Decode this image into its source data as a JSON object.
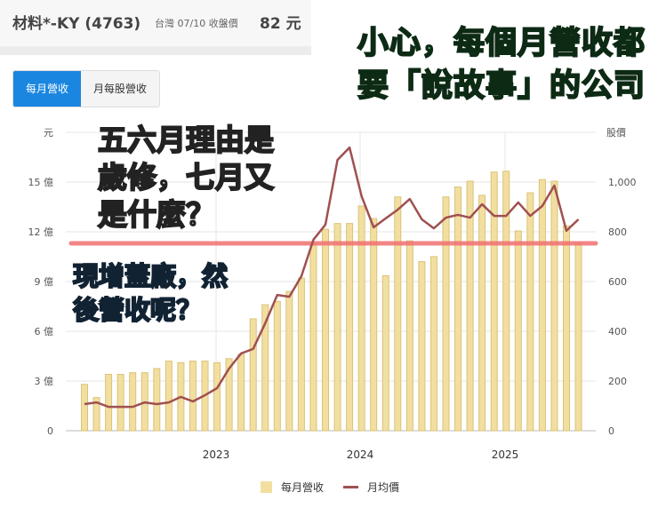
{
  "header": {
    "stock_name": "材料*-KY (4763)",
    "market_date_label": "台灣 07/10 收盤價",
    "close_price": "82 元"
  },
  "tabs": [
    {
      "label": "每月營收",
      "active": true
    },
    {
      "label": "月每股營收",
      "active": false
    }
  ],
  "overlay_title": {
    "line1": "小心，每個月營收都",
    "line2": "要「說故事」的公司",
    "color": "#3bc07a"
  },
  "annotations": {
    "note1": [
      "五六月理由是",
      "歲修，七月又",
      "是什麼？"
    ],
    "note2": [
      "現增蓋廠，然",
      "後營收呢？"
    ],
    "threshold_line_color": "#f07070"
  },
  "legend": {
    "revenue": "每月營收",
    "price": "月均價"
  },
  "chart_data": {
    "type": "bar",
    "title": "",
    "left_axis_unit_label": "元",
    "right_axis_label": "股價",
    "left_ticks": [
      "0",
      "3 億",
      "6 億",
      "9 億",
      "12 億",
      "15 億"
    ],
    "right_ticks": [
      "0",
      "200",
      "400",
      "600",
      "800",
      "1,000"
    ],
    "x_labels": [
      "2023",
      "2024",
      "2025"
    ],
    "ylim_left": [
      0,
      18
    ],
    "ylim_right": [
      0,
      1200
    ],
    "grid": true,
    "legend_position": "bottom",
    "threshold_value_left": 11.3,
    "series": [
      {
        "name": "每月營收",
        "type": "bar",
        "axis": "left",
        "unit": "億",
        "color": "#f2dfa0",
        "values": [
          2.8,
          2.0,
          3.4,
          3.4,
          3.5,
          3.5,
          3.75,
          4.2,
          4.1,
          4.2,
          4.2,
          4.1,
          4.35,
          4.6,
          6.75,
          7.6,
          7.8,
          8.4,
          9.2,
          11.25,
          12.15,
          12.5,
          12.5,
          13.55,
          12.8,
          9.35,
          14.1,
          11.45,
          10.2,
          10.5,
          14.1,
          14.7,
          15.05,
          14.2,
          15.6,
          15.65,
          12.05,
          14.35,
          15.15,
          15.05,
          12.35,
          11.3
        ]
      },
      {
        "name": "月均價",
        "type": "line",
        "axis": "right",
        "color": "#a05050",
        "values": [
          107,
          114,
          96,
          96,
          96,
          114,
          107,
          114,
          136,
          118,
          143,
          171,
          250,
          311,
          329,
          432,
          546,
          539,
          621,
          768,
          829,
          1089,
          1139,
          943,
          818,
          854,
          889,
          932,
          850,
          814,
          857,
          868,
          857,
          911,
          864,
          864,
          918,
          864,
          904,
          986,
          804,
          850
        ]
      }
    ]
  }
}
